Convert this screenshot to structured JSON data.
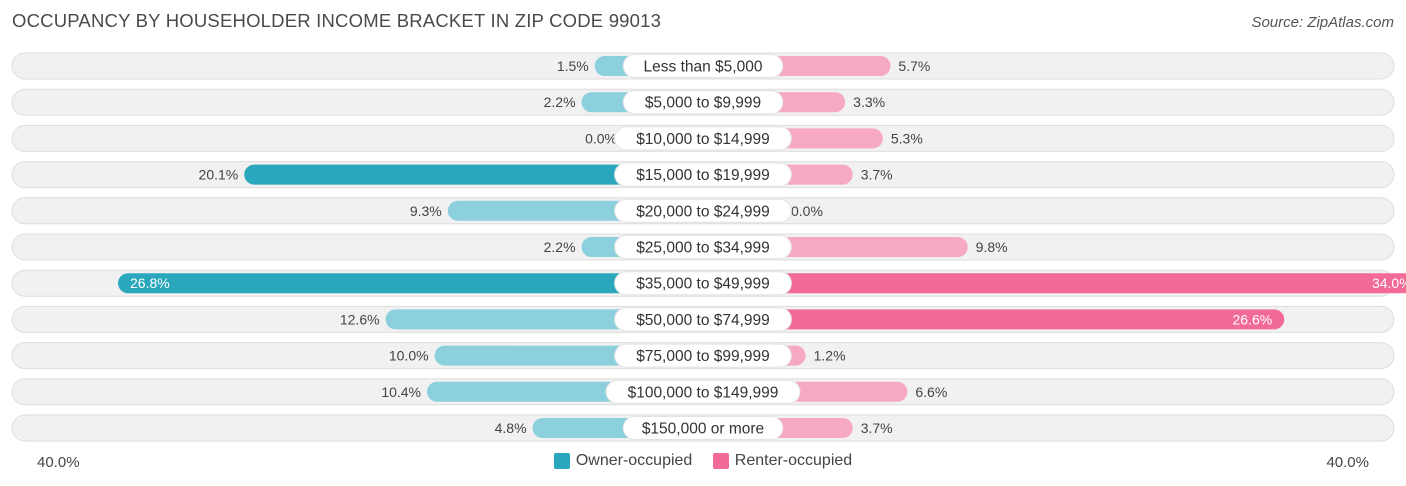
{
  "title": "OCCUPANCY BY HOUSEHOLDER INCOME BRACKET IN ZIP CODE 99013",
  "source": "Source: ZipAtlas.com",
  "colors": {
    "owner_dark": "#2ba7bd",
    "owner_light": "#8bd0dc",
    "renter_dark": "#f26b96",
    "renter_light": "#f7a8c2",
    "row_bg": "#f1f1f1",
    "row_border": "#dedede"
  },
  "axis": {
    "left_label": "40.0%",
    "right_label": "40.0%"
  },
  "legend": {
    "owner": "Owner-occupied",
    "renter": "Renter-occupied"
  },
  "chart_data": {
    "type": "bar",
    "orientation": "horizontal-diverging",
    "xlim": [
      -40,
      40
    ],
    "categories": [
      "Less than $5,000",
      "$5,000 to $9,999",
      "$10,000 to $14,999",
      "$15,000 to $19,999",
      "$20,000 to $24,999",
      "$25,000 to $34,999",
      "$35,000 to $49,999",
      "$50,000 to $74,999",
      "$75,000 to $99,999",
      "$100,000 to $149,999",
      "$150,000 or more"
    ],
    "series": [
      {
        "name": "Owner-occupied",
        "values": [
          1.5,
          2.2,
          0.0,
          20.1,
          9.3,
          2.2,
          26.8,
          12.6,
          10.0,
          10.4,
          4.8
        ],
        "labels": [
          "1.5%",
          "2.2%",
          "0.0%",
          "20.1%",
          "9.3%",
          "2.2%",
          "26.8%",
          "12.6%",
          "10.0%",
          "10.4%",
          "4.8%"
        ]
      },
      {
        "name": "Renter-occupied",
        "values": [
          5.7,
          3.3,
          5.3,
          3.7,
          0.0,
          9.8,
          34.0,
          26.6,
          1.2,
          6.6,
          3.7
        ],
        "labels": [
          "5.7%",
          "3.3%",
          "5.3%",
          "3.7%",
          "0.0%",
          "9.8%",
          "34.0%",
          "26.6%",
          "1.2%",
          "6.6%",
          "3.7%"
        ]
      }
    ]
  }
}
